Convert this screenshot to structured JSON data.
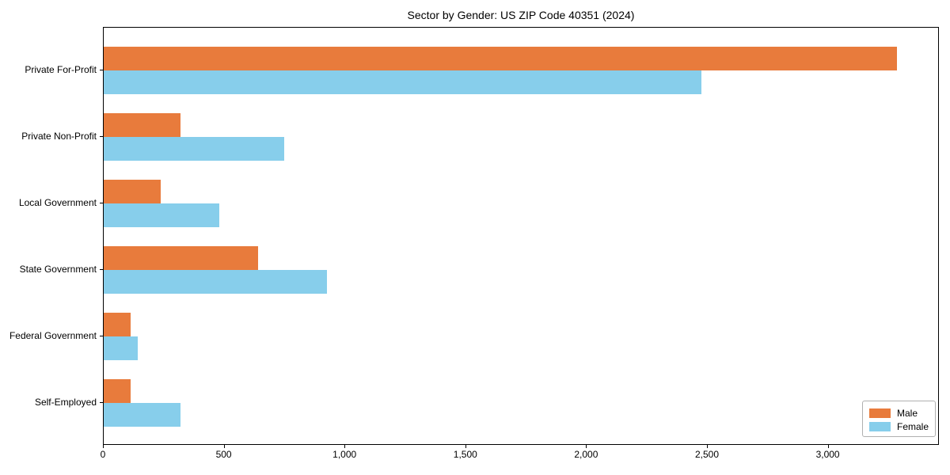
{
  "chart_data": {
    "type": "bar",
    "orientation": "horizontal",
    "title": "Sector by Gender: US ZIP Code 40351 (2024)",
    "categories": [
      "Private For-Profit",
      "Private Non-Profit",
      "Local Government",
      "State Government",
      "Federal Government",
      "Self-Employed"
    ],
    "series": [
      {
        "name": "Male",
        "color": "#E87B3C",
        "values": [
          3290,
          320,
          235,
          640,
          110,
          110
        ]
      },
      {
        "name": "Female",
        "color": "#87CEEB",
        "values": [
          2480,
          750,
          480,
          925,
          140,
          320
        ]
      }
    ],
    "xlabel": "",
    "ylabel": "",
    "xlim": [
      0,
      3460
    ],
    "xticks": [
      0,
      500,
      1000,
      1500,
      2000,
      2500,
      3000
    ],
    "xtick_labels": [
      "0",
      "500",
      "1,000",
      "1,500",
      "2,000",
      "2,500",
      "3,000"
    ],
    "grid": false,
    "legend_position": "lower right"
  },
  "colors": {
    "axis": "#000000",
    "text": "#000000",
    "background": "#ffffff",
    "legend_border": "#b0b0b0"
  }
}
